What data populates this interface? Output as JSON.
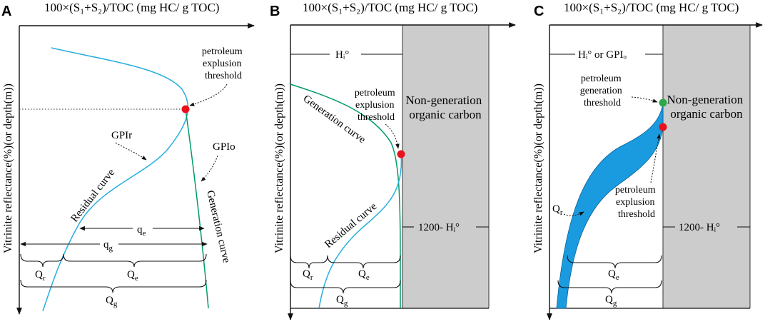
{
  "panels": {
    "a": {
      "letter": "A",
      "x_label": "100×(S₁+S₂)/TOC (mg HC/ g TOC)",
      "y_label": "Vitrinite reflectance(%)(or depth(m))",
      "threshold_label": [
        "petroleum",
        "explusion",
        "threshold"
      ],
      "gpir": "GPIr",
      "gpio": "GPIo",
      "residual_curve": "Residual curve",
      "generation_curve": "Generation curve",
      "qe_small": "qe",
      "qg_small": "qg",
      "qr": "Qr",
      "qe": "Qe",
      "qg": "Qg"
    },
    "b": {
      "letter": "B",
      "x_label": "100×(S₁+S₂)/TOC (mg HC/ g TOC)",
      "y_label": "Vitrinite reflectance(%)(or depth(m))",
      "hi": "Hᵢ°",
      "threshold_label": [
        "petroleum",
        "explusion",
        "threshold"
      ],
      "generation_curve": "Generation curve",
      "residual_curve": "Residual curve",
      "non_generation": [
        "Non-generation",
        "organic carbon"
      ],
      "hi_marker": "1200- Hᵢ°",
      "qr": "Qr",
      "qe": "Qe",
      "qg": "Qg"
    },
    "c": {
      "letter": "C",
      "x_label": "100×(S₁+S₂)/TOC (mg HC/ g TOC)",
      "y_label": "Vitrinite reflectance(%)(or depth(m))",
      "hi_gpio": "Hᵢ°  or  GPIₒ",
      "generation_threshold": [
        "petroleum",
        "generation",
        "threshold"
      ],
      "non_generation": [
        "Non-generation",
        "organic carbon"
      ],
      "explusion_threshold": [
        "petroleum",
        "explusion",
        "threshold"
      ],
      "qr": "Qr",
      "hi_marker": "1200- Hᵢ°",
      "qe": "Qe",
      "qg": "Qg"
    }
  },
  "colors": {
    "residual": "#27aee0",
    "generation": "#009a6e",
    "fill": "#1a9be0",
    "gray": "#cccccc",
    "red": "#e8121d",
    "green": "#2ea84a"
  }
}
